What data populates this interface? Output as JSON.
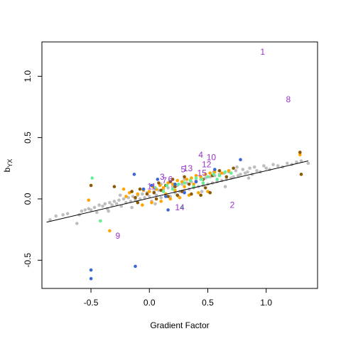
{
  "chart_data": {
    "type": "scatter",
    "xlabel": "Gradient Factor",
    "ylabel": "b",
    "ylabel_subscript": "YX",
    "xlim": [
      -0.92,
      1.44
    ],
    "ylim": [
      -0.73,
      1.28
    ],
    "xticks": [
      -0.5,
      0.0,
      0.5,
      1.0
    ],
    "xtick_labels": [
      "-0.5",
      "0.0",
      "0.5",
      "1.0"
    ],
    "yticks": [
      -0.5,
      0.0,
      0.5,
      1.0
    ],
    "ytick_labels": [
      "-0.5",
      "0.0",
      "0.5",
      "1.0"
    ],
    "grid": false,
    "regression_line": {
      "x": [
        -0.88,
        1.36
      ],
      "y": [
        -0.19,
        0.31
      ],
      "color": "#000000"
    },
    "colors": {
      "grey": "#bebebe",
      "orange": "#ffa500",
      "brown": "#8b5a00",
      "green": "#66ee99",
      "blue": "#3a66d6",
      "label": "#9932cc"
    },
    "series": [
      {
        "color_key": "grey",
        "points": [
          [
            -0.85,
            -0.17
          ],
          [
            -0.8,
            -0.14
          ],
          [
            -0.74,
            -0.13
          ],
          [
            -0.7,
            -0.12
          ],
          [
            -0.62,
            -0.2
          ],
          [
            -0.58,
            -0.1
          ],
          [
            -0.55,
            -0.09
          ],
          [
            -0.52,
            -0.08
          ],
          [
            -0.5,
            -0.09
          ],
          [
            -0.47,
            -0.07
          ],
          [
            -0.45,
            -0.11
          ],
          [
            -0.43,
            -0.05
          ],
          [
            -0.4,
            -0.06
          ],
          [
            -0.38,
            -0.04
          ],
          [
            -0.36,
            -0.08
          ],
          [
            -0.34,
            -0.03
          ],
          [
            -0.32,
            -0.05
          ],
          [
            -0.3,
            -0.02
          ],
          [
            -0.28,
            -0.04
          ],
          [
            -0.26,
            -0.01
          ],
          [
            -0.24,
            -0.06
          ],
          [
            -0.22,
            0.0
          ],
          [
            -0.2,
            -0.03
          ],
          [
            -0.18,
            0.01
          ],
          [
            -0.16,
            -0.02
          ],
          [
            -0.14,
            0.02
          ],
          [
            -0.12,
            -0.01
          ],
          [
            -0.1,
            0.03
          ],
          [
            -0.08,
            0.0
          ],
          [
            -0.06,
            0.04
          ],
          [
            -0.04,
            0.01
          ],
          [
            -0.02,
            0.05
          ],
          [
            0.0,
            0.02
          ],
          [
            0.02,
            -0.02
          ],
          [
            0.04,
            0.06
          ],
          [
            0.06,
            0.03
          ],
          [
            0.08,
            0.07
          ],
          [
            0.1,
            0.01
          ],
          [
            0.12,
            0.08
          ],
          [
            0.14,
            0.04
          ],
          [
            0.16,
            0.09
          ],
          [
            0.18,
            0.02
          ],
          [
            0.2,
            0.1
          ],
          [
            0.22,
            0.05
          ],
          [
            0.24,
            0.11
          ],
          [
            0.26,
            0.06
          ],
          [
            0.28,
            0.12
          ],
          [
            0.3,
            0.07
          ],
          [
            0.32,
            0.13
          ],
          [
            0.34,
            0.08
          ],
          [
            0.36,
            0.14
          ],
          [
            0.38,
            0.09
          ],
          [
            0.4,
            0.15
          ],
          [
            0.42,
            0.1
          ],
          [
            0.44,
            0.16
          ],
          [
            0.46,
            0.11
          ],
          [
            0.48,
            0.17
          ],
          [
            0.5,
            0.12
          ],
          [
            0.52,
            0.18
          ],
          [
            0.54,
            0.13
          ],
          [
            0.56,
            0.19
          ],
          [
            0.58,
            0.14
          ],
          [
            0.6,
            0.2
          ],
          [
            0.62,
            0.15
          ],
          [
            0.64,
            0.21
          ],
          [
            0.66,
            0.16
          ],
          [
            0.68,
            0.22
          ],
          [
            0.7,
            0.17
          ],
          [
            0.72,
            0.18
          ],
          [
            0.74,
            0.23
          ],
          [
            0.76,
            0.19
          ],
          [
            0.78,
            0.2
          ],
          [
            0.8,
            0.24
          ],
          [
            0.82,
            0.21
          ],
          [
            0.84,
            0.22
          ],
          [
            0.86,
            0.25
          ],
          [
            0.88,
            0.2
          ],
          [
            0.9,
            0.26
          ],
          [
            0.92,
            0.23
          ],
          [
            0.95,
            0.22
          ],
          [
            0.98,
            0.27
          ],
          [
            1.0,
            0.25
          ],
          [
            1.03,
            0.24
          ],
          [
            1.06,
            0.28
          ],
          [
            1.1,
            0.27
          ],
          [
            1.14,
            0.26
          ],
          [
            1.18,
            0.29
          ],
          [
            1.22,
            0.28
          ],
          [
            1.26,
            0.3
          ],
          [
            1.3,
            0.31
          ],
          [
            1.36,
            0.29
          ],
          [
            -0.6,
            -0.13
          ],
          [
            -0.35,
            -0.1
          ],
          [
            -0.15,
            -0.07
          ],
          [
            0.05,
            -0.04
          ],
          [
            0.25,
            0.02
          ],
          [
            0.45,
            0.06
          ],
          [
            0.65,
            0.1
          ],
          [
            0.85,
            0.17
          ],
          [
            0.1,
            0.12
          ],
          [
            -0.05,
            0.08
          ],
          [
            0.3,
            0.16
          ],
          [
            0.55,
            0.22
          ],
          [
            0.75,
            0.26
          ],
          [
            -0.25,
            0.03
          ]
        ]
      },
      {
        "color_key": "orange",
        "points": [
          [
            -0.52,
            -0.01
          ],
          [
            -0.2,
            0.02
          ],
          [
            -0.17,
            0.05
          ],
          [
            -0.1,
            0.04
          ],
          [
            -0.05,
            0.07
          ],
          [
            0.0,
            0.06
          ],
          [
            0.03,
            0.1
          ],
          [
            0.06,
            0.08
          ],
          [
            0.09,
            0.11
          ],
          [
            0.12,
            0.09
          ],
          [
            0.16,
            0.13
          ],
          [
            0.2,
            0.12
          ],
          [
            0.24,
            0.15
          ],
          [
            0.28,
            0.14
          ],
          [
            0.32,
            0.16
          ],
          [
            0.36,
            0.17
          ],
          [
            0.4,
            0.19
          ],
          [
            0.44,
            0.18
          ],
          [
            0.48,
            0.2
          ],
          [
            0.52,
            0.21
          ],
          [
            0.56,
            0.22
          ],
          [
            0.62,
            0.21
          ],
          [
            0.68,
            0.23
          ],
          [
            0.02,
            -0.03
          ],
          [
            0.1,
            -0.02
          ],
          [
            0.18,
            0.0
          ],
          [
            0.26,
            0.01
          ],
          [
            0.34,
            0.03
          ],
          [
            0.42,
            0.05
          ],
          [
            0.5,
            0.06
          ],
          [
            -0.06,
            -0.05
          ],
          [
            0.22,
            0.07
          ],
          [
            0.38,
            0.12
          ],
          [
            1.29,
            0.36
          ],
          [
            -0.34,
            -0.26
          ],
          [
            -0.22,
            0.08
          ],
          [
            0.14,
            0.04
          ],
          [
            0.3,
            0.1
          ]
        ]
      },
      {
        "color_key": "brown",
        "points": [
          [
            -0.5,
            0.11
          ],
          [
            -0.3,
            0.1
          ],
          [
            -0.15,
            0.06
          ],
          [
            -0.08,
            0.08
          ],
          [
            -0.02,
            0.04
          ],
          [
            0.04,
            0.05
          ],
          [
            0.08,
            0.13
          ],
          [
            0.14,
            0.11
          ],
          [
            0.18,
            0.14
          ],
          [
            0.22,
            0.1
          ],
          [
            0.3,
            0.18
          ],
          [
            0.34,
            0.12
          ],
          [
            0.4,
            0.14
          ],
          [
            0.46,
            0.16
          ],
          [
            0.54,
            0.19
          ],
          [
            0.6,
            0.23
          ],
          [
            0.72,
            0.25
          ],
          [
            0.06,
            0.0
          ],
          [
            0.16,
            0.02
          ],
          [
            0.24,
            0.03
          ],
          [
            0.36,
            0.04
          ],
          [
            0.44,
            0.03
          ],
          [
            0.52,
            0.05
          ],
          [
            -0.1,
            -0.03
          ],
          [
            1.3,
            0.2
          ],
          [
            1.29,
            0.38
          ],
          [
            -0.12,
            0.01
          ],
          [
            0.1,
            0.07
          ],
          [
            0.28,
            0.06
          ],
          [
            0.48,
            0.09
          ],
          [
            0.66,
            0.18
          ],
          [
            0.2,
            0.16
          ]
        ]
      },
      {
        "color_key": "green",
        "points": [
          [
            -0.49,
            0.17
          ],
          [
            -0.42,
            -0.18
          ],
          [
            0.15,
            0.11
          ],
          [
            0.2,
            0.08
          ],
          [
            0.25,
            0.12
          ],
          [
            0.3,
            0.13
          ],
          [
            0.35,
            0.15
          ],
          [
            0.4,
            0.17
          ],
          [
            0.45,
            0.16
          ],
          [
            0.5,
            0.18
          ],
          [
            0.55,
            0.2
          ],
          [
            0.6,
            0.19
          ],
          [
            0.65,
            0.22
          ],
          [
            0.7,
            0.21
          ],
          [
            0.28,
            -0.07
          ],
          [
            0.12,
            0.06
          ],
          [
            0.38,
            0.1
          ],
          [
            0.46,
            0.13
          ],
          [
            0.58,
            0.16
          ],
          [
            0.05,
            0.09
          ]
        ]
      },
      {
        "color_key": "blue",
        "points": [
          [
            -0.5,
            -0.58
          ],
          [
            -0.5,
            -0.65
          ],
          [
            -0.12,
            -0.55
          ],
          [
            -0.13,
            0.2
          ],
          [
            -0.05,
            0.08
          ],
          [
            0.07,
            0.16
          ],
          [
            0.14,
            0.02
          ],
          [
            0.16,
            -0.09
          ],
          [
            0.22,
            0.12
          ],
          [
            0.4,
            0.14
          ],
          [
            0.56,
            0.24
          ],
          [
            0.78,
            0.32
          ],
          [
            0.3,
            0.05
          ],
          [
            0.02,
            0.11
          ]
        ]
      }
    ],
    "labeled_points": [
      {
        "text": "1",
        "x": 0.97,
        "y": 1.2
      },
      {
        "text": "2",
        "x": 0.71,
        "y": -0.05
      },
      {
        "text": "3",
        "x": 0.11,
        "y": 0.18
      },
      {
        "text": "4",
        "x": 0.44,
        "y": 0.36
      },
      {
        "text": "5",
        "x": 0.29,
        "y": 0.24
      },
      {
        "text": "6",
        "x": 0.18,
        "y": 0.16
      },
      {
        "text": "7",
        "x": 0.13,
        "y": 0.15
      },
      {
        "text": "8",
        "x": 1.19,
        "y": 0.81
      },
      {
        "text": "9",
        "x": -0.27,
        "y": -0.3
      },
      {
        "text": "10",
        "x": 0.53,
        "y": 0.34
      },
      {
        "text": "11",
        "x": 0.02,
        "y": 0.1
      },
      {
        "text": "12",
        "x": 0.49,
        "y": 0.28
      },
      {
        "text": "13",
        "x": 0.33,
        "y": 0.25
      },
      {
        "text": "14",
        "x": 0.26,
        "y": -0.07
      },
      {
        "text": "15",
        "x": 0.45,
        "y": 0.21
      }
    ]
  }
}
